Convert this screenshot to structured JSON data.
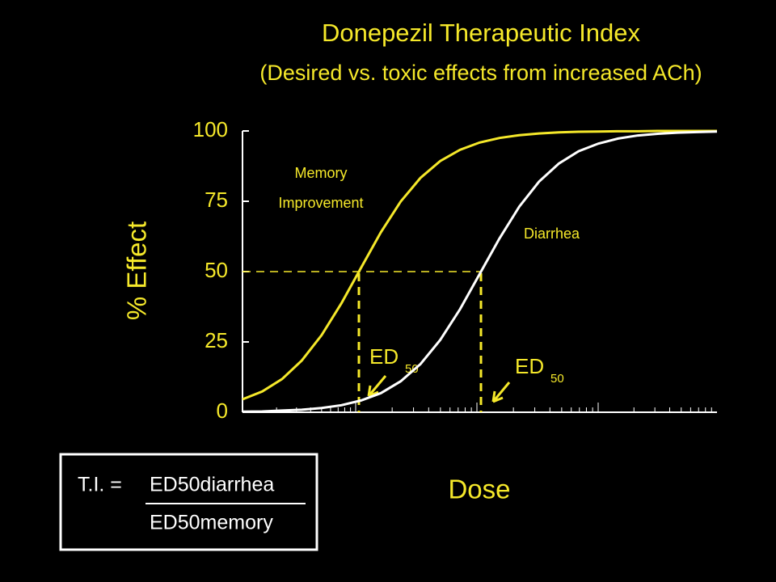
{
  "chart_data": {
    "type": "line",
    "title": "Donepezil Therapeutic Index",
    "subtitle": "(Desired vs. toxic effects from increased ACh)",
    "y_label": "% Effect",
    "x_label": "Dose",
    "categories": [
      null,
      null,
      null,
      null,
      null,
      null,
      null,
      null,
      null,
      null,
      null,
      null,
      null,
      null,
      null,
      null,
      null,
      null,
      null,
      null,
      null,
      null,
      null,
      null,
      null
    ],
    "series": [
      {
        "name": null,
        "color": "#f5e82a",
        "values": [
          4.6,
          7.4,
          11.8,
          18.4,
          27.4,
          38.7,
          51.4,
          64.0,
          74.9,
          83.3,
          89.3,
          93.3,
          95.9,
          97.5,
          98.5,
          99.1,
          99.5,
          99.7,
          99.8,
          99.9,
          99.9,
          100,
          100,
          100,
          100
        ]
      },
      {
        "name": null,
        "color": "#ffffff",
        "values": [
          0.2,
          0.3,
          0.6,
          0.9,
          1.5,
          2.5,
          4.2,
          6.8,
          11.0,
          17.1,
          25.7,
          36.6,
          49.2,
          61.8,
          73.1,
          82.0,
          88.4,
          92.8,
          95.5,
          97.3,
          98.4,
          99.0,
          99.4,
          99.6,
          99.8
        ]
      }
    ],
    "ylim": [
      0,
      100
    ],
    "yticks": [
      0,
      25,
      50,
      75,
      100
    ],
    "reference_y": 50,
    "annotations": {
      "memory": [
        "Memory",
        "Improvement"
      ],
      "diarrhea": "Diarrhea",
      "ed": "ED",
      "ed_sub": "50"
    },
    "formula": {
      "lhs": "T.I. =",
      "numerator": "ED50diarrhea",
      "denominator": "ED50memory"
    }
  }
}
